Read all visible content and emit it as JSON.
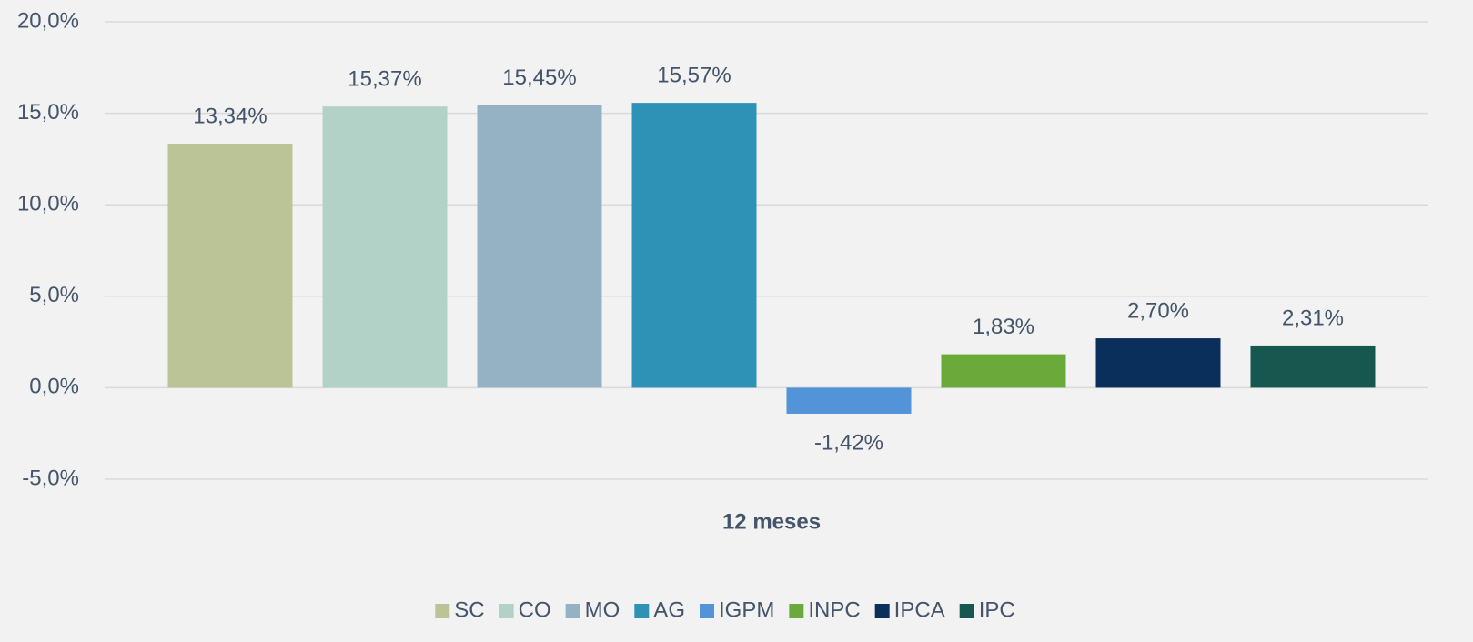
{
  "chart_data": {
    "type": "bar",
    "categories": [
      "12 meses"
    ],
    "series": [
      {
        "name": "SC",
        "color": "#bac497",
        "values": [
          13.34
        ],
        "value_labels": [
          "13,34%"
        ]
      },
      {
        "name": "CO",
        "color": "#b2d1c7",
        "values": [
          15.37
        ],
        "value_labels": [
          "15,37%"
        ]
      },
      {
        "name": "MO",
        "color": "#95b2c4",
        "values": [
          15.45
        ],
        "value_labels": [
          "15,45%"
        ]
      },
      {
        "name": "AG",
        "color": "#2e92b7",
        "values": [
          15.57
        ],
        "value_labels": [
          "15,57%"
        ]
      },
      {
        "name": "IGPM",
        "color": "#5393d8",
        "values": [
          -1.42
        ],
        "value_labels": [
          "-1,42%"
        ]
      },
      {
        "name": "INPC",
        "color": "#6aaa3a",
        "values": [
          1.83
        ],
        "value_labels": [
          "1,83%"
        ]
      },
      {
        "name": "IPCA",
        "color": "#0a2f5a",
        "values": [
          2.7
        ],
        "value_labels": [
          "2,70%"
        ]
      },
      {
        "name": "IPC",
        "color": "#16574f",
        "values": [
          2.31
        ],
        "value_labels": [
          "2,31%"
        ]
      }
    ],
    "ylim": [
      -5,
      20
    ],
    "yticks": [
      {
        "value": -5,
        "label": "-5,0%"
      },
      {
        "value": 0,
        "label": "0,0%"
      },
      {
        "value": 5,
        "label": "5,0%"
      },
      {
        "value": 10,
        "label": "10,0%"
      },
      {
        "value": 15,
        "label": "15,0%"
      },
      {
        "value": 20,
        "label": "20,0%"
      }
    ],
    "grid": true,
    "legend": "bottom"
  }
}
